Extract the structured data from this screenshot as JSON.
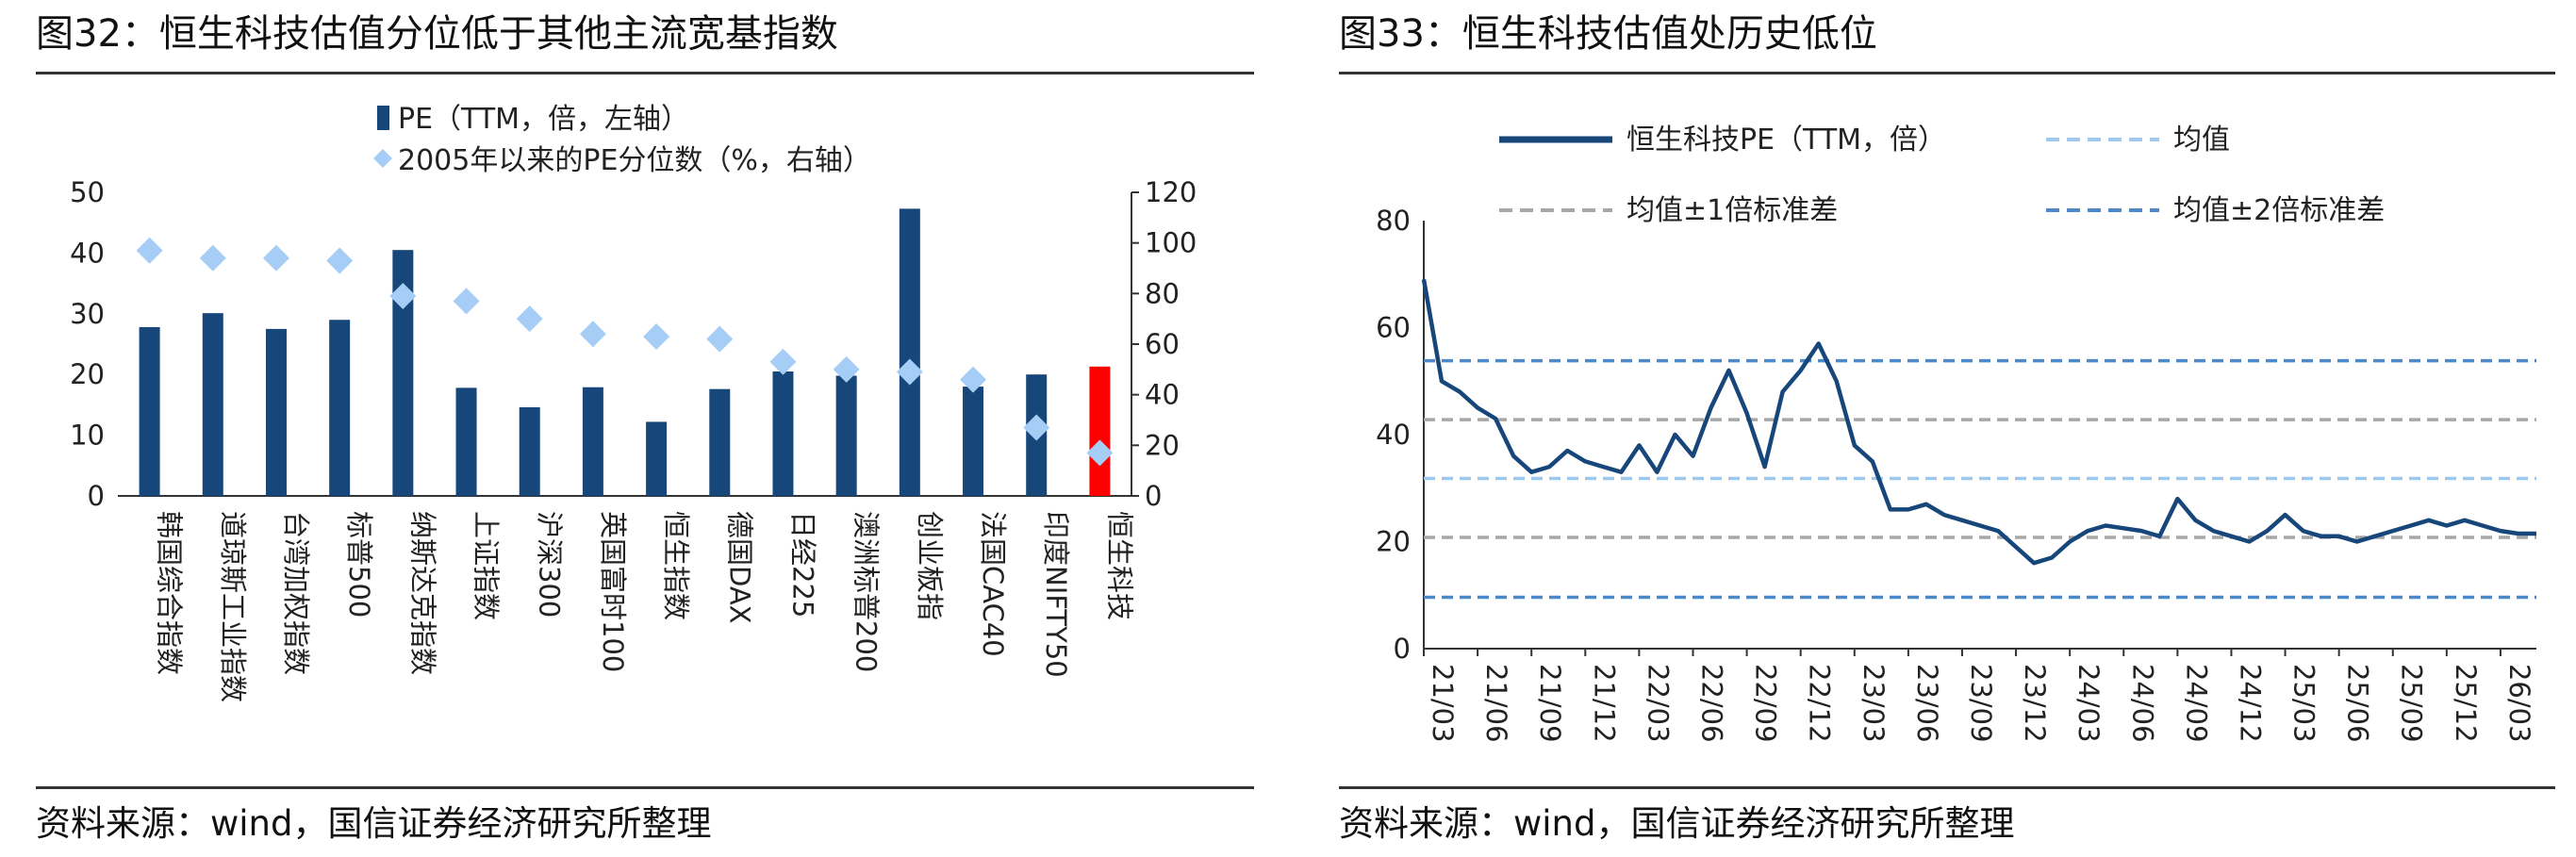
{
  "figures": [
    {
      "title": "图32：恒生科技估值分位低于其他主流宽基指数",
      "source": "资料来源：wind，国信证券经济研究所整理"
    },
    {
      "title": "图33：恒生科技估值处历史低位",
      "source": "资料来源：wind，国信证券经济研究所整理"
    }
  ],
  "colors": {
    "bar": "#16467a",
    "highlight": "#ff0000",
    "marker": "#a6cdf6",
    "pe_line": "#16467a",
    "mean": "#9ec8ee",
    "sd1": "#a7a7a7",
    "sd2": "#4b89c9",
    "rule": "#333333"
  },
  "chart_data": [
    {
      "type": "bar",
      "title": "图32：恒生科技估值分位低于其他主流宽基指数",
      "categories": [
        "韩国综合指数",
        "道琼斯工业指数",
        "台湾加权指数",
        "标普500",
        "纳斯达克指数",
        "上证指数",
        "沪深300",
        "英国富时100",
        "恒生指数",
        "德国DAX",
        "日经225",
        "澳洲标普200",
        "创业板指",
        "法国CAC40",
        "印度NIFTY50",
        "恒生科技"
      ],
      "series": [
        {
          "name": "PE（TTM，倍，左轴）",
          "type": "bar",
          "axis": "left",
          "values": [
            27.8,
            30.1,
            27.5,
            29.0,
            40.5,
            17.8,
            14.6,
            17.9,
            12.2,
            17.6,
            20.5,
            19.8,
            47.3,
            18.0,
            20.0,
            21.3
          ]
        },
        {
          "name": "2005年以来的PE分位数（%，右轴）",
          "type": "scatter",
          "axis": "right",
          "values": [
            97,
            94,
            94,
            93,
            79,
            77,
            70,
            64,
            63,
            62,
            53,
            50,
            49,
            46,
            27,
            17
          ]
        }
      ],
      "highlight_category": "恒生科技",
      "y_left": {
        "min": 0,
        "max": 50,
        "ticks": [
          0,
          10,
          20,
          30,
          40,
          50
        ]
      },
      "y_right": {
        "min": 0,
        "max": 120,
        "ticks": [
          0,
          20,
          40,
          60,
          80,
          100,
          120
        ]
      },
      "legend": "top-left"
    },
    {
      "type": "line",
      "title": "图33：恒生科技估值处历史低位",
      "x_ticks": [
        "21/03",
        "21/06",
        "21/09",
        "21/12",
        "22/03",
        "22/06",
        "22/09",
        "22/12",
        "23/03",
        "23/06",
        "23/09",
        "23/12",
        "24/03",
        "24/06",
        "24/09",
        "24/12",
        "25/03",
        "25/06",
        "25/09",
        "25/12",
        "26/03"
      ],
      "ylim": [
        0,
        80
      ],
      "y_ticks": [
        0,
        20,
        40,
        60,
        80
      ],
      "series": [
        {
          "name": "恒生科技PE（TTM，倍）",
          "type": "line",
          "x": [
            "2021-03",
            "2021-04",
            "2021-05",
            "2021-06",
            "2021-07",
            "2021-08",
            "2021-09",
            "2021-10",
            "2021-11",
            "2021-12",
            "2022-01",
            "2022-02",
            "2022-03",
            "2022-04",
            "2022-05",
            "2022-06",
            "2022-07",
            "2022-08",
            "2022-09",
            "2022-10",
            "2022-11",
            "2022-12",
            "2023-01",
            "2023-02",
            "2023-03",
            "2023-04",
            "2023-05",
            "2023-06",
            "2023-07",
            "2023-08",
            "2023-09",
            "2023-10",
            "2023-11",
            "2023-12",
            "2024-01",
            "2024-02",
            "2024-03",
            "2024-04",
            "2024-05",
            "2024-06",
            "2024-07",
            "2024-08",
            "2024-09",
            "2024-10",
            "2024-11",
            "2024-12",
            "2025-01",
            "2025-02",
            "2025-03",
            "2025-04",
            "2025-05",
            "2025-06",
            "2025-07",
            "2025-08",
            "2025-09",
            "2025-10",
            "2025-11",
            "2025-12",
            "2026-01",
            "2026-02",
            "2026-03",
            "2026-04",
            "2026-05"
          ],
          "values": [
            69,
            50,
            48,
            45,
            43,
            36,
            33,
            34,
            37,
            35,
            34,
            33,
            38,
            33,
            40,
            36,
            45,
            52,
            44,
            34,
            48,
            52,
            57,
            50,
            38,
            35,
            26,
            26,
            27,
            25,
            24,
            23,
            22,
            19,
            16,
            17,
            20,
            22,
            23,
            22.5,
            22,
            21,
            28,
            24,
            22,
            21,
            20,
            22,
            25,
            22,
            21,
            21,
            20,
            21,
            22,
            23,
            24,
            23,
            24,
            23,
            22,
            21.5,
            21.5
          ]
        },
        {
          "name": "均值",
          "type": "hline",
          "value": 31.8
        },
        {
          "name": "均值±1倍标准差",
          "type": "hline",
          "values": [
            20.8,
            42.8
          ]
        },
        {
          "name": "均值±2倍标准差",
          "type": "hline",
          "values": [
            9.6,
            53.8
          ]
        }
      ],
      "legend": "top"
    }
  ]
}
